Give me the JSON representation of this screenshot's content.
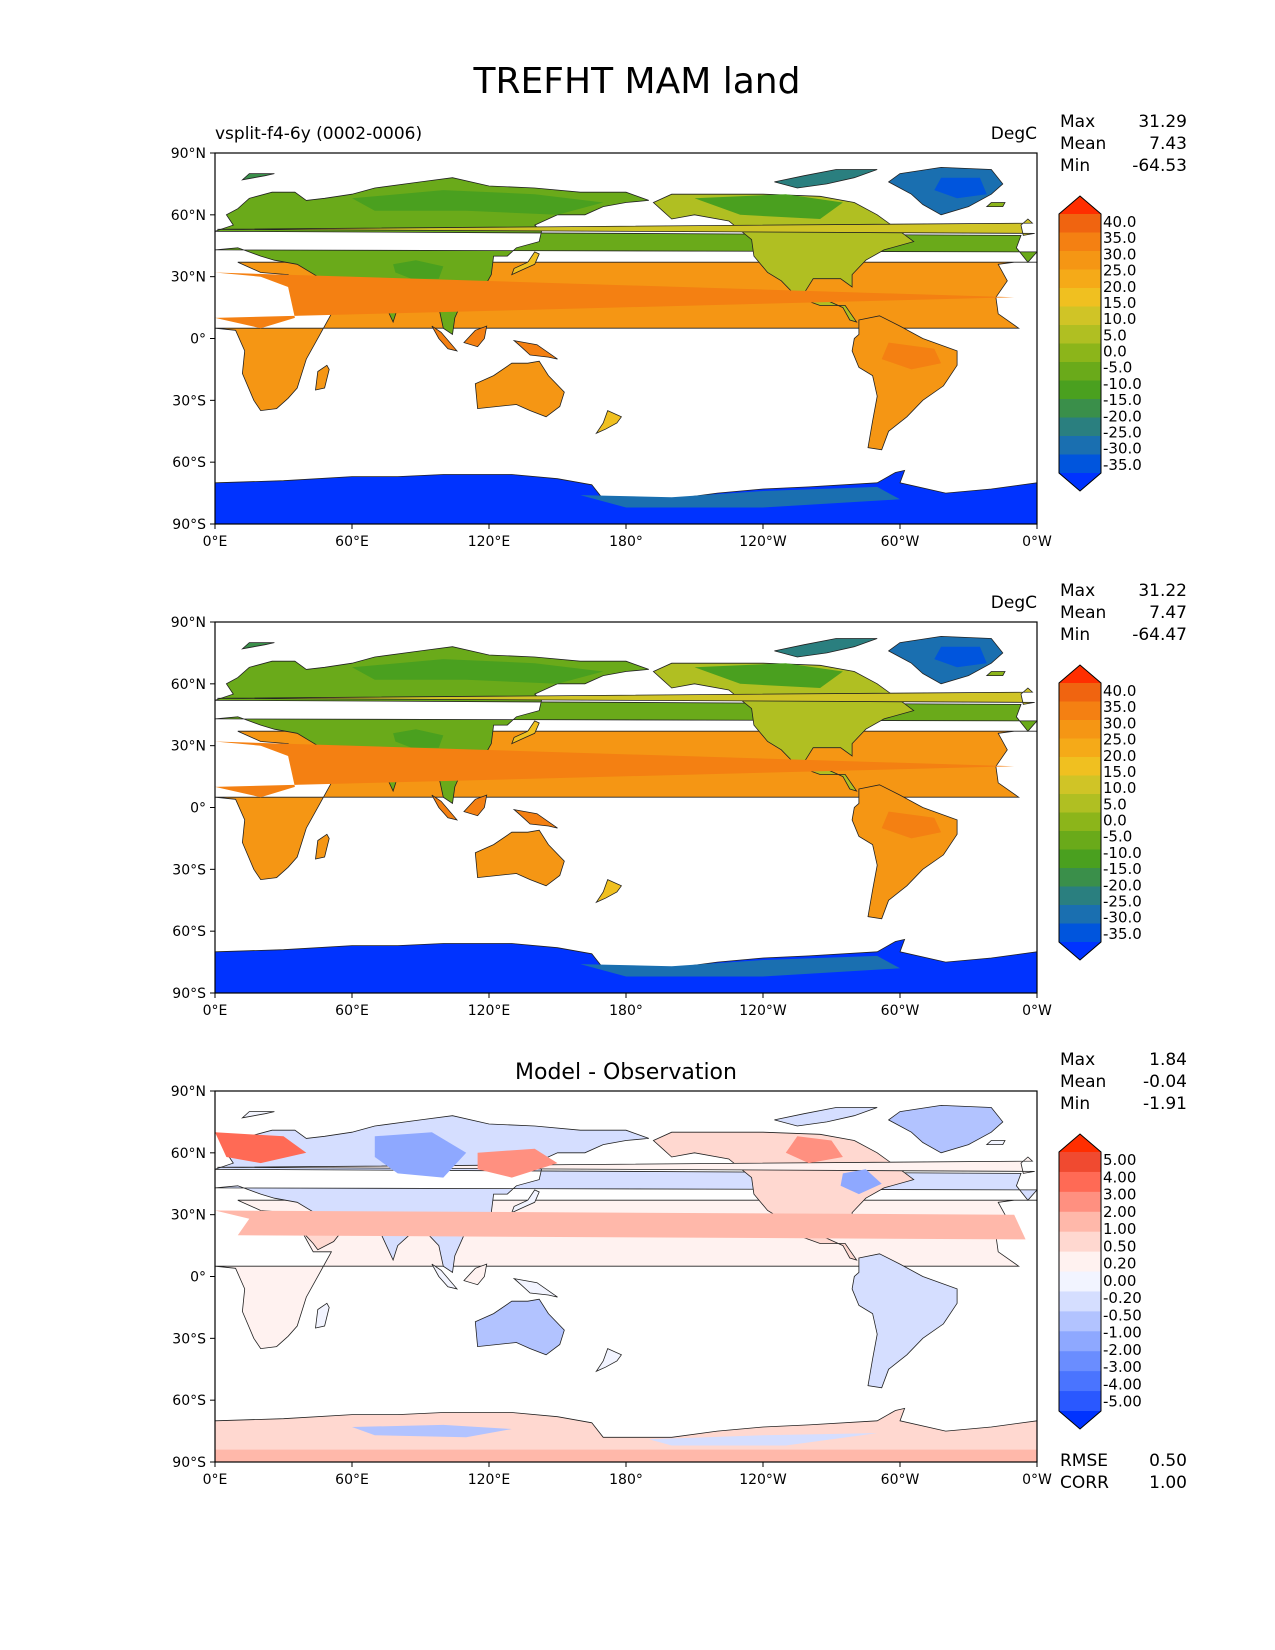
{
  "figure": {
    "title": "TREFHT MAM land"
  },
  "axes": {
    "lat_ticks": [
      "90°N",
      "60°N",
      "30°N",
      "0°",
      "30°S",
      "60°S",
      "90°S"
    ],
    "lon_ticks": [
      "0°E",
      "60°E",
      "120°E",
      "180°",
      "120°W",
      "60°W",
      "0°W"
    ]
  },
  "colors": {
    "land_scale": [
      "#0033ff",
      "#0055dd",
      "#1a6fb0",
      "#2a7f7f",
      "#3a8f4a",
      "#4aa01f",
      "#6aaa1a",
      "#8cb51a",
      "#b0bf22",
      "#d0c426",
      "#f0c020",
      "#f5aa18",
      "#f59614",
      "#f48012",
      "#f06410",
      "#ff2e00"
    ],
    "diff_scale": [
      "#0033ff",
      "#2a58ff",
      "#4a74ff",
      "#6a8dff",
      "#8ea8ff",
      "#b2c3ff",
      "#d5deff",
      "#f2f4ff",
      "#fff2f0",
      "#ffd8d0",
      "#ffb8aa",
      "#ff9080",
      "#ff6a55",
      "#f04a30",
      "#ff2e00"
    ],
    "ocean": "#ffffff"
  },
  "panels": [
    {
      "title": "",
      "left_title": "vsplit-f4-6y (0002-0006)",
      "units": "DegC",
      "stats": [
        {
          "label": "Max",
          "value": "31.29"
        },
        {
          "label": "Mean",
          "value": "7.43"
        },
        {
          "label": "Min",
          "value": "-64.53"
        }
      ],
      "colorbar": {
        "levels": [
          "40.0",
          "35.0",
          "30.0",
          "25.0",
          "20.0",
          "15.0",
          "10.0",
          "5.0",
          "0.0",
          "-5.0",
          "-10.0",
          "-15.0",
          "-20.0",
          "-25.0",
          "-30.0",
          "-35.0"
        ]
      },
      "footer": []
    },
    {
      "title": "",
      "left_title": "",
      "units": "DegC",
      "stats": [
        {
          "label": "Max",
          "value": "31.22"
        },
        {
          "label": "Mean",
          "value": "7.47"
        },
        {
          "label": "Min",
          "value": "-64.47"
        }
      ],
      "colorbar": {
        "levels": [
          "40.0",
          "35.0",
          "30.0",
          "25.0",
          "20.0",
          "15.0",
          "10.0",
          "5.0",
          "0.0",
          "-5.0",
          "-10.0",
          "-15.0",
          "-20.0",
          "-25.0",
          "-30.0",
          "-35.0"
        ]
      },
      "footer": []
    },
    {
      "title": "Model - Observation",
      "left_title": "",
      "units": "",
      "stats": [
        {
          "label": "Max",
          "value": "1.84"
        },
        {
          "label": "Mean",
          "value": "-0.04"
        },
        {
          "label": "Min",
          "value": "-1.91"
        }
      ],
      "colorbar": {
        "levels": [
          "5.00",
          "4.00",
          "3.00",
          "2.00",
          "1.00",
          "0.50",
          "0.20",
          "0.00",
          "-0.20",
          "-0.50",
          "-1.00",
          "-2.00",
          "-3.00",
          "-4.00",
          "-5.00"
        ]
      },
      "footer": [
        {
          "label": "RMSE",
          "value": "0.50"
        },
        {
          "label": "CORR",
          "value": "1.00"
        }
      ]
    }
  ]
}
